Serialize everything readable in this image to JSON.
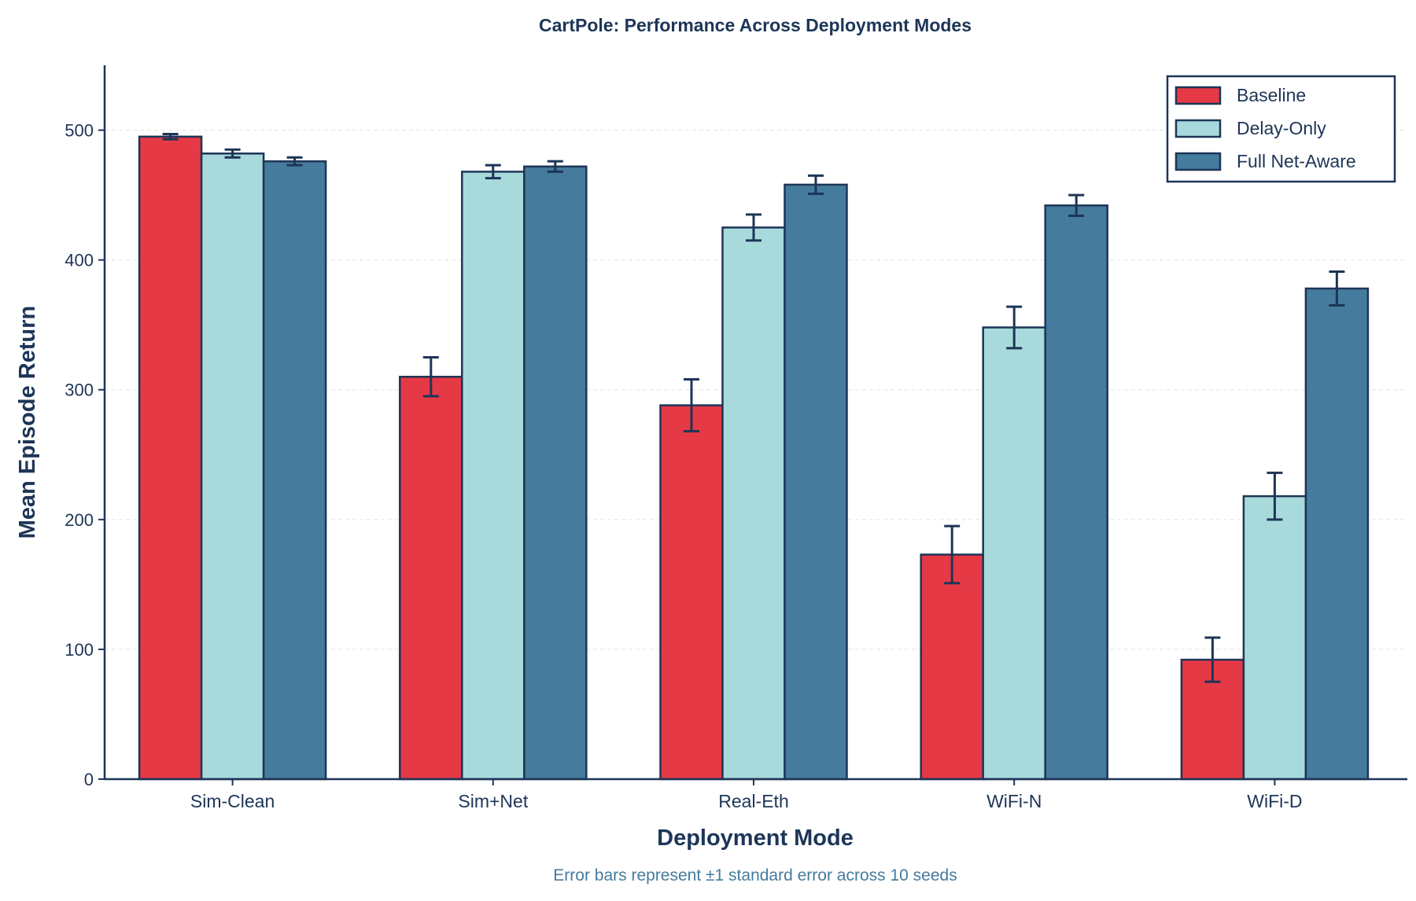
{
  "chart_data": {
    "type": "bar",
    "title": "CartPole: Performance Across Deployment Modes",
    "xlabel": "Deployment Mode",
    "ylabel": "Mean Episode Return",
    "caption": "Error bars represent ±1 standard error across 10 seeds",
    "categories": [
      "Sim-Clean",
      "Sim+Net",
      "Real-Eth",
      "WiFi-N",
      "WiFi-D"
    ],
    "ylim": [
      0,
      550
    ],
    "yticks": [
      0,
      100,
      200,
      300,
      400,
      500
    ],
    "grid": true,
    "legend_position": "top-right",
    "series": [
      {
        "name": "Baseline",
        "color": "#E63946",
        "values": [
          495,
          310,
          288,
          173,
          92
        ],
        "errors": [
          2,
          15,
          20,
          22,
          17
        ]
      },
      {
        "name": "Delay-Only",
        "color": "#A8DADC",
        "values": [
          482,
          468,
          425,
          348,
          218
        ],
        "errors": [
          3,
          5,
          10,
          16,
          18
        ]
      },
      {
        "name": "Full Net-Aware",
        "color": "#457B9D",
        "values": [
          476,
          472,
          458,
          442,
          378
        ],
        "errors": [
          3,
          4,
          7,
          8,
          13
        ]
      }
    ],
    "colors": {
      "text": "#1D3557",
      "caption": "#457B9D",
      "grid": "#e3e3e3"
    }
  }
}
